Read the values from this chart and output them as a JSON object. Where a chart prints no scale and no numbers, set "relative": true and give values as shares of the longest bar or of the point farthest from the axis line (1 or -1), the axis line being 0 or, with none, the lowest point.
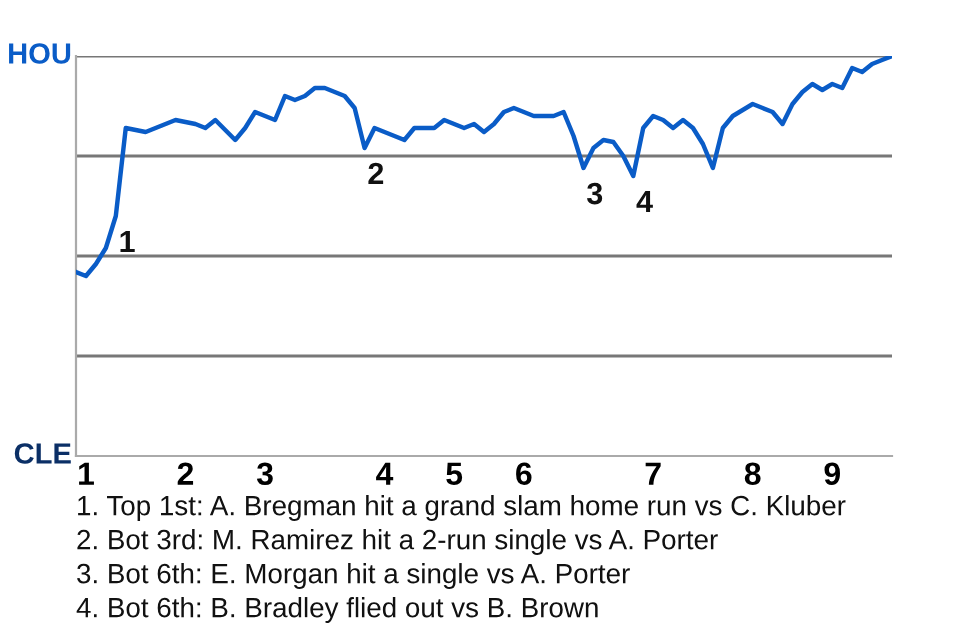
{
  "chart_data": {
    "type": "line",
    "relative": true,
    "categories": [
      null,
      "1",
      null,
      null,
      null,
      null,
      null,
      null,
      null,
      null,
      null,
      "2",
      null,
      null,
      null,
      null,
      null,
      null,
      null,
      "3",
      null,
      null,
      null,
      null,
      null,
      null,
      null,
      null,
      null,
      null,
      null,
      "4",
      null,
      null,
      null,
      null,
      null,
      null,
      "5",
      null,
      null,
      null,
      null,
      null,
      null,
      "6",
      null,
      null,
      null,
      null,
      null,
      null,
      null,
      null,
      null,
      null,
      null,
      null,
      "7",
      null,
      null,
      null,
      null,
      null,
      null,
      null,
      null,
      null,
      "8",
      null,
      null,
      null,
      null,
      null,
      null,
      null,
      "9",
      null,
      null,
      null,
      null,
      null,
      null
    ],
    "grid": "y",
    "marker": "none",
    "line_style": "solid",
    "series": [
      {
        "color": "#0a5cc7",
        "values": [
          0.46,
          0.45,
          0.48,
          0.52,
          0.6,
          0.82,
          0.815,
          0.81,
          0.82,
          0.83,
          0.84,
          0.835,
          0.83,
          0.82,
          0.84,
          0.815,
          0.79,
          0.82,
          0.86,
          0.85,
          0.84,
          0.9,
          0.89,
          0.9,
          0.92,
          0.92,
          0.91,
          0.9,
          0.87,
          0.77,
          0.82,
          0.81,
          0.8,
          0.79,
          0.82,
          0.82,
          0.82,
          0.84,
          0.83,
          0.82,
          0.83,
          0.81,
          0.83,
          0.86,
          0.87,
          0.86,
          0.85,
          0.85,
          0.85,
          0.86,
          0.8,
          0.72,
          0.77,
          0.79,
          0.785,
          0.75,
          0.7,
          0.82,
          0.85,
          0.84,
          0.82,
          0.84,
          0.82,
          0.78,
          0.72,
          0.82,
          0.85,
          0.865,
          0.88,
          0.87,
          0.86,
          0.83,
          0.88,
          0.91,
          0.93,
          0.915,
          0.93,
          0.92,
          0.97,
          0.96,
          0.98,
          0.99,
          1.0
        ]
      }
    ],
    "annotations": [
      {
        "text": "1",
        "y": 0.6
      },
      {
        "text": "2",
        "y": 0.77
      },
      {
        "text": "3",
        "y": 0.72
      },
      {
        "text": "4",
        "y": 0.7
      },
      "HOU",
      "CLE",
      "1. Top 1st: A. Bregman hit a grand slam home run vs C. Kluber",
      "2. Bot 3rd: M. Ramirez hit a 2-run single vs A. Porter",
      "3. Bot 6th: E. Morgan hit a single vs A. Porter",
      "4. Bot 6th: B. Bradley flied out vs B. Brown"
    ]
  }
}
